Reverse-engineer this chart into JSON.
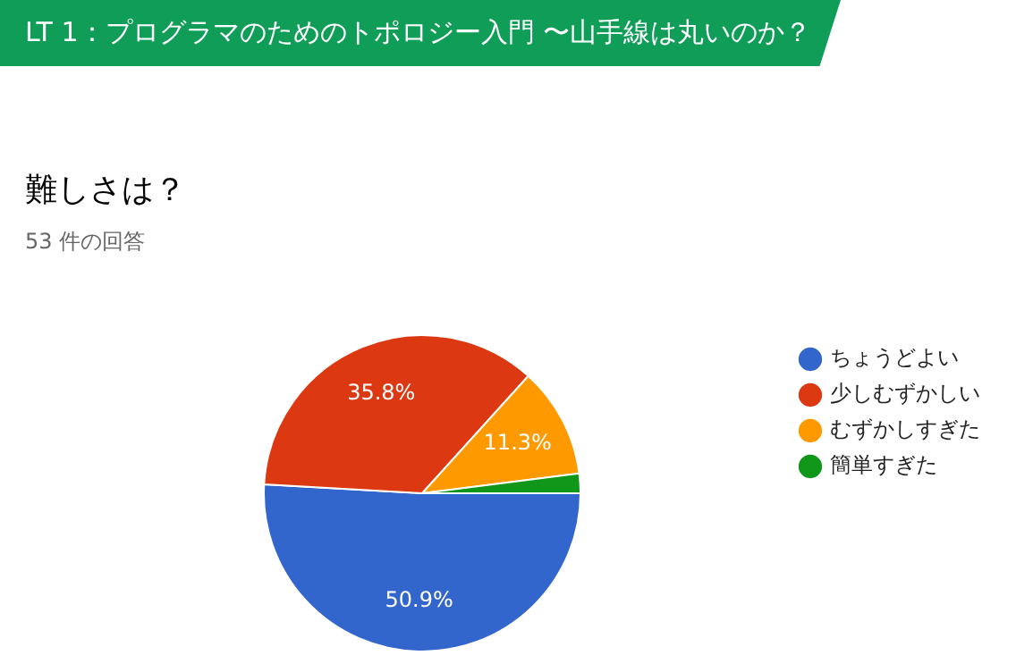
{
  "chart_data": {
    "type": "pie",
    "title": "LT 1：プログラマのためのトポロジー入門 〜山手線は丸いのか？",
    "subtitle": "難しさは？",
    "annotations": [
      "53 件の回答"
    ],
    "categories": [
      "ちょうどよい",
      "少しむずかしい",
      "むずかしすぎた",
      "簡単すぎた"
    ],
    "values": [
      50.9,
      35.8,
      11.3,
      2.0
    ],
    "value_labels": [
      "50.9%",
      "35.8%",
      "11.3%",
      null
    ],
    "colors": [
      "#3366cc",
      "#dc3912",
      "#ff9900",
      "#109618"
    ],
    "legend": "right"
  }
}
